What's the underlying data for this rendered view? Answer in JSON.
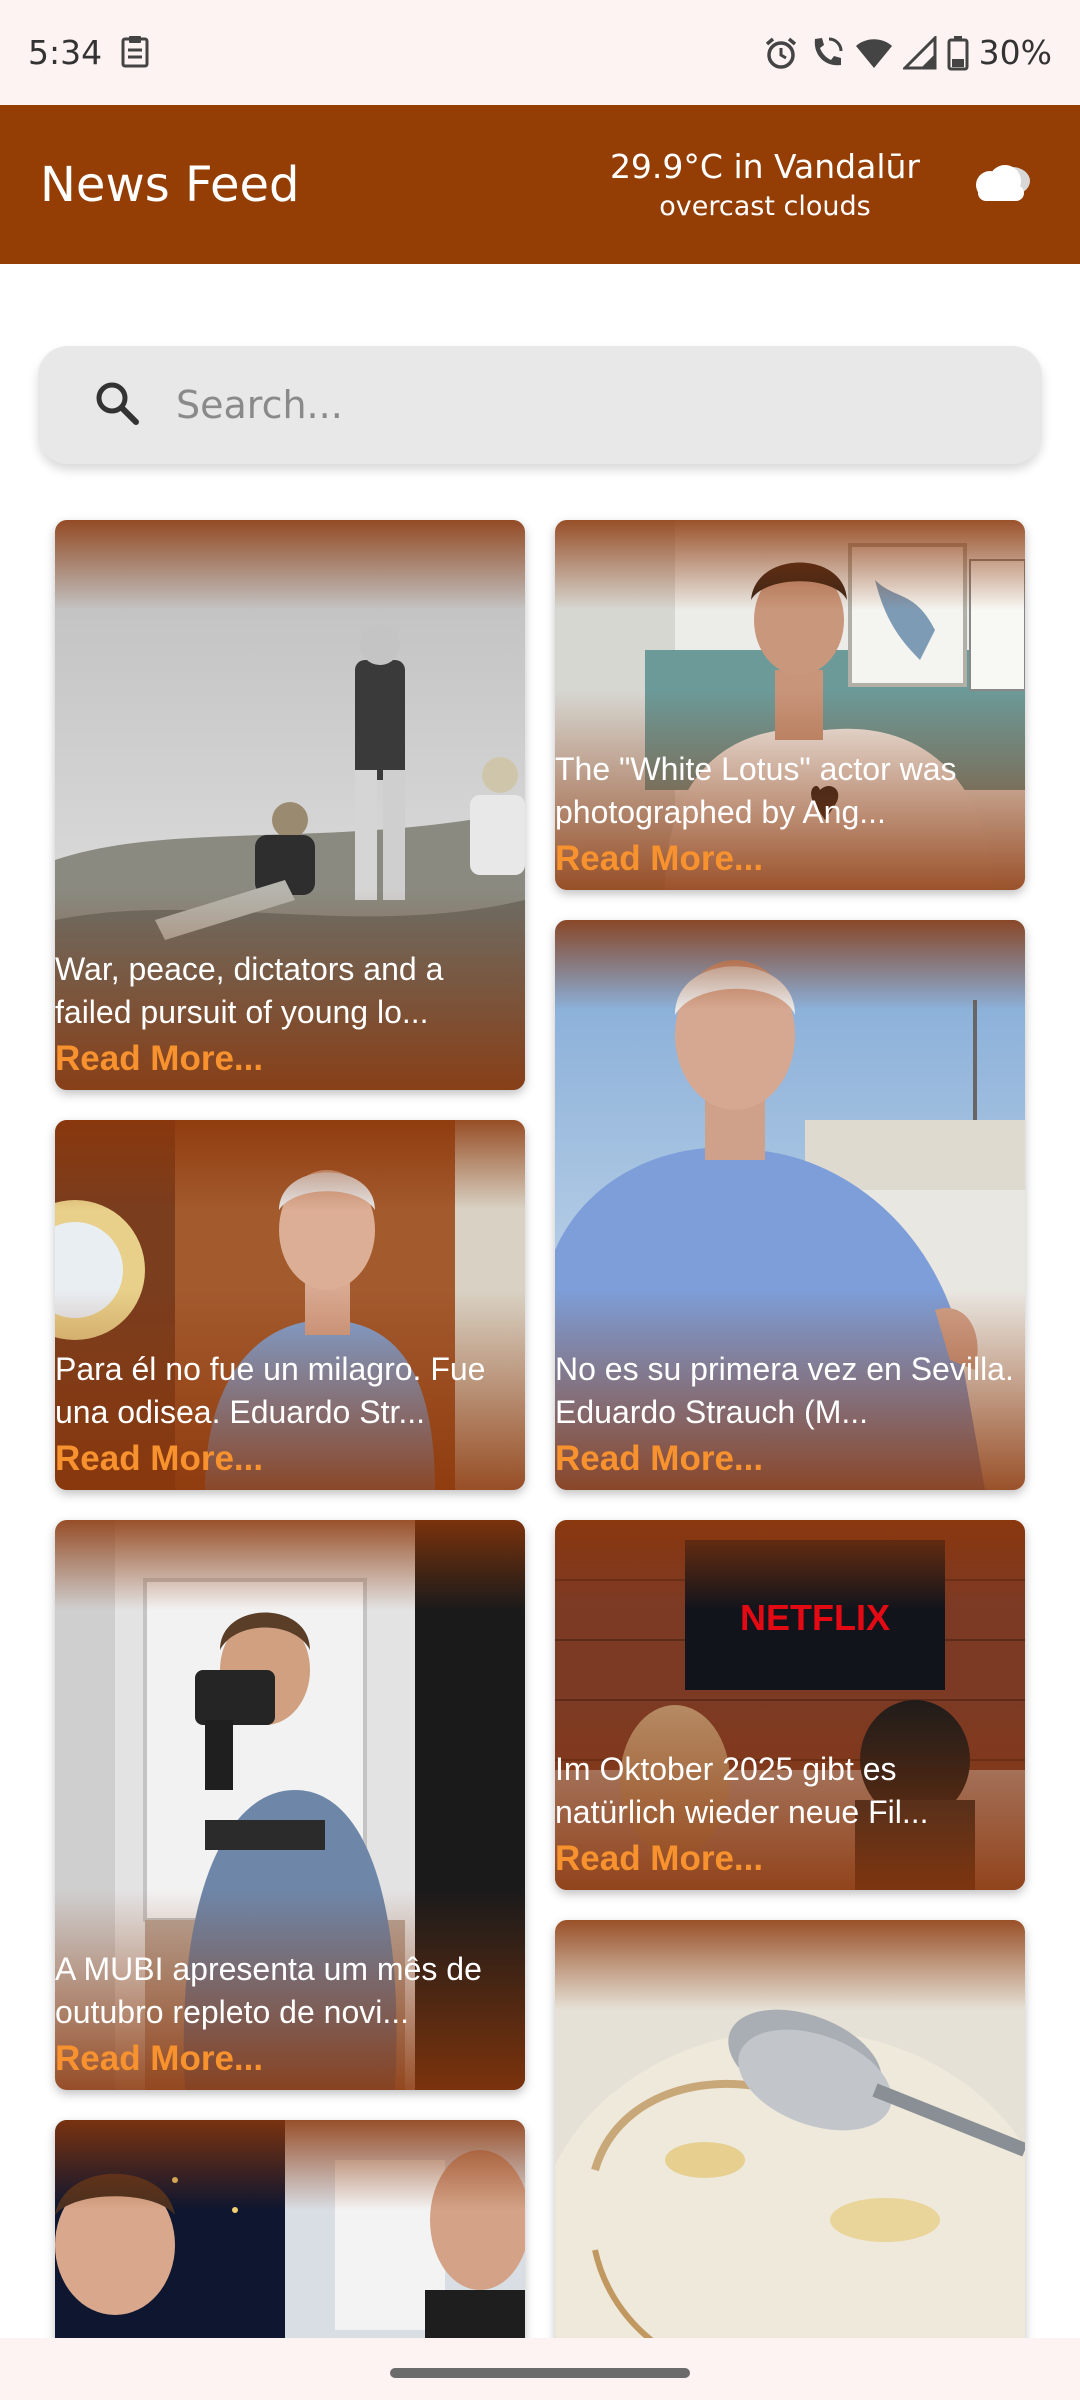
{
  "status": {
    "time": "5:34",
    "battery": "30%",
    "icons": [
      "clipboard-icon",
      "alarm-icon",
      "wifi-call-icon",
      "wifi-icon",
      "signal-icon",
      "battery-icon"
    ]
  },
  "header": {
    "title": "News Feed",
    "weather_temp": "29.9°C in Vandalūr",
    "weather_desc": "overcast clouds",
    "weather_icon": "cloud-icon",
    "color": "#943d05"
  },
  "search": {
    "placeholder": "Search...",
    "value": ""
  },
  "cards": [
    {
      "desc": "War, peace, dictators and a failed pursuit of young lo...",
      "read_more": "Read More..."
    },
    {
      "desc": "The \"White Lotus\" actor was photographed by Ang...",
      "read_more": "Read More..."
    },
    {
      "desc": "Para él no fue un milagro. Fue una odisea. Eduardo Str...",
      "read_more": "Read More..."
    },
    {
      "desc": "No es su primera vez en Sevilla. Eduardo Strauch (M...",
      "read_more": "Read More..."
    },
    {
      "desc": "A MUBI apresenta um mês de outubro repleto de novi...",
      "read_more": "Read More..."
    },
    {
      "desc": "Im Oktober 2025 gibt es natürlich wieder neue Fil...",
      "read_more": "Read More..."
    },
    {
      "desc": "",
      "read_more": ""
    },
    {
      "desc": "",
      "read_more": ""
    }
  ],
  "image_texts": {
    "netflix_logo": "NETFLIX"
  },
  "colors": {
    "accent": "#f7922e",
    "header_bg": "#943d05",
    "background": "#fdf3f2"
  }
}
